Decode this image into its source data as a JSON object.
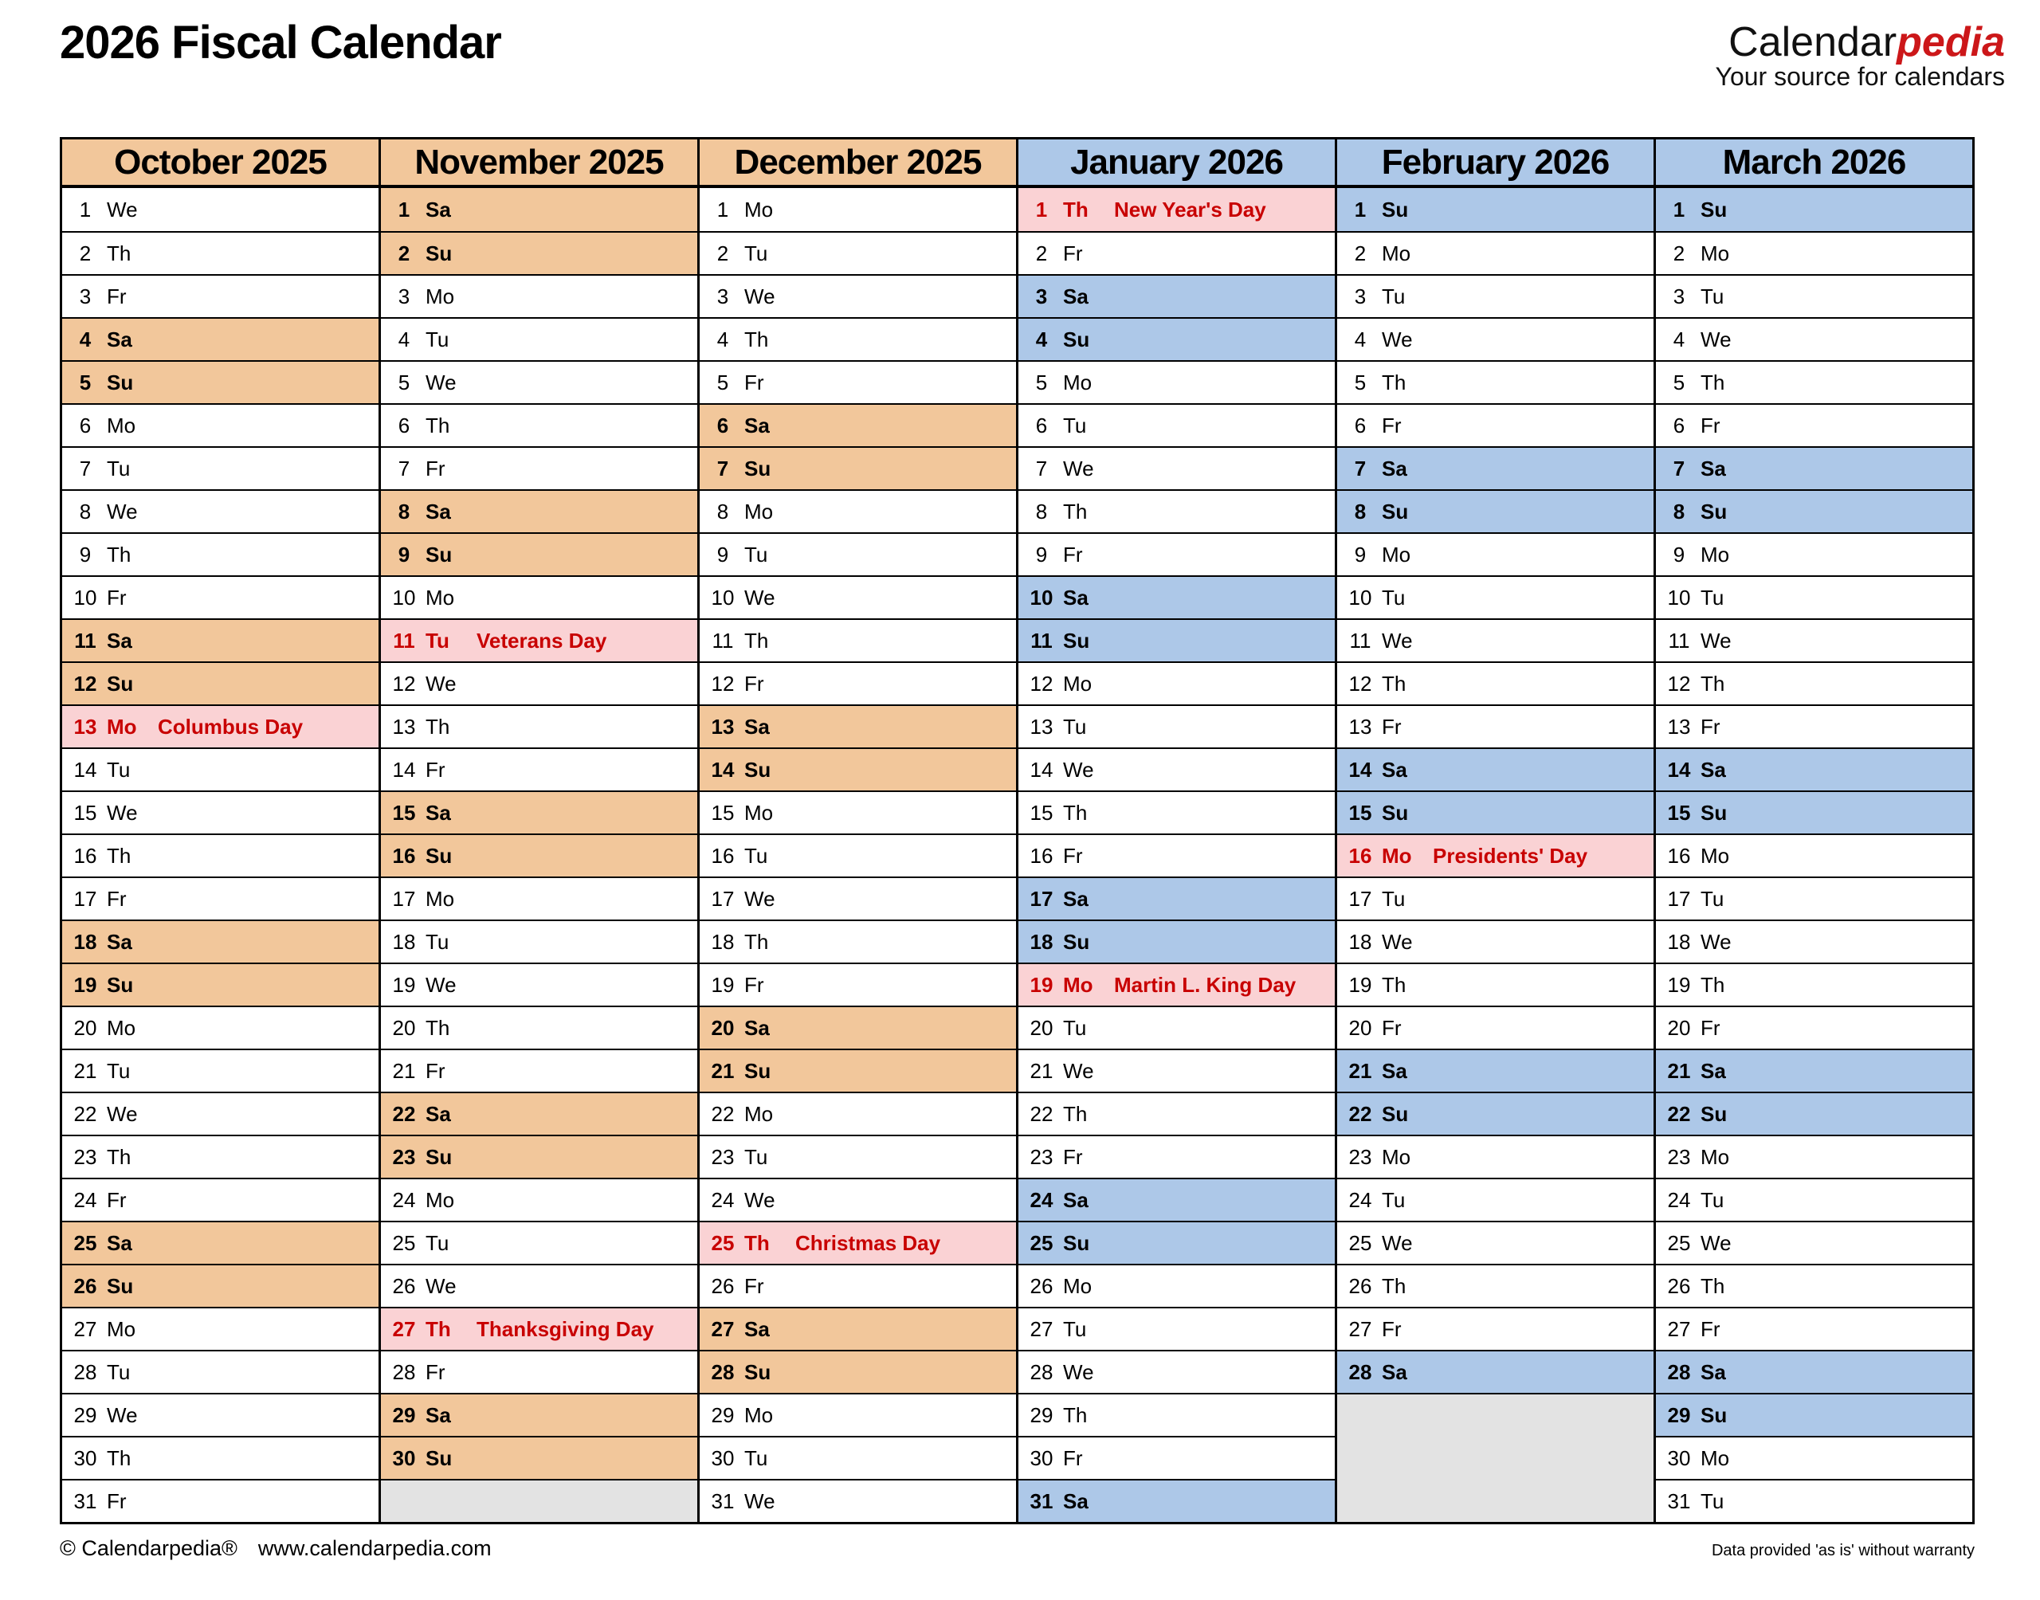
{
  "title": "2026 Fiscal Calendar",
  "logo": {
    "part1": "Calendar",
    "part2": "pedia",
    "tagline": "Your source for calendars"
  },
  "footer": {
    "copyright": "© Calendarpedia®",
    "website": "www.calendarpedia.com",
    "disclaimer": "Data provided 'as is' without warranty"
  },
  "colors": {
    "weekend_2025_orange": "#F2C79B",
    "weekend_2026_blue": "#ADC8E8",
    "holiday_bg_pink": "#FAD2D4",
    "holiday_text_red": "#C80000",
    "empty_cell_gray": "#E3E3E3",
    "logo_red": "#CC1719"
  },
  "months": [
    {
      "name": "October 2025",
      "theme": "orange",
      "days": [
        {
          "d": 1,
          "w": "We"
        },
        {
          "d": 2,
          "w": "Th"
        },
        {
          "d": 3,
          "w": "Fr"
        },
        {
          "d": 4,
          "w": "Sa"
        },
        {
          "d": 5,
          "w": "Su"
        },
        {
          "d": 6,
          "w": "Mo"
        },
        {
          "d": 7,
          "w": "Tu"
        },
        {
          "d": 8,
          "w": "We"
        },
        {
          "d": 9,
          "w": "Th"
        },
        {
          "d": 10,
          "w": "Fr"
        },
        {
          "d": 11,
          "w": "Sa"
        },
        {
          "d": 12,
          "w": "Su"
        },
        {
          "d": 13,
          "w": "Mo",
          "h": "Columbus Day"
        },
        {
          "d": 14,
          "w": "Tu"
        },
        {
          "d": 15,
          "w": "We"
        },
        {
          "d": 16,
          "w": "Th"
        },
        {
          "d": 17,
          "w": "Fr"
        },
        {
          "d": 18,
          "w": "Sa"
        },
        {
          "d": 19,
          "w": "Su"
        },
        {
          "d": 20,
          "w": "Mo"
        },
        {
          "d": 21,
          "w": "Tu"
        },
        {
          "d": 22,
          "w": "We"
        },
        {
          "d": 23,
          "w": "Th"
        },
        {
          "d": 24,
          "w": "Fr"
        },
        {
          "d": 25,
          "w": "Sa"
        },
        {
          "d": 26,
          "w": "Su"
        },
        {
          "d": 27,
          "w": "Mo"
        },
        {
          "d": 28,
          "w": "Tu"
        },
        {
          "d": 29,
          "w": "We"
        },
        {
          "d": 30,
          "w": "Th"
        },
        {
          "d": 31,
          "w": "Fr"
        }
      ]
    },
    {
      "name": "November 2025",
      "theme": "orange",
      "days": [
        {
          "d": 1,
          "w": "Sa"
        },
        {
          "d": 2,
          "w": "Su"
        },
        {
          "d": 3,
          "w": "Mo"
        },
        {
          "d": 4,
          "w": "Tu"
        },
        {
          "d": 5,
          "w": "We"
        },
        {
          "d": 6,
          "w": "Th"
        },
        {
          "d": 7,
          "w": "Fr"
        },
        {
          "d": 8,
          "w": "Sa"
        },
        {
          "d": 9,
          "w": "Su"
        },
        {
          "d": 10,
          "w": "Mo"
        },
        {
          "d": 11,
          "w": "Tu",
          "h": "Veterans Day"
        },
        {
          "d": 12,
          "w": "We"
        },
        {
          "d": 13,
          "w": "Th"
        },
        {
          "d": 14,
          "w": "Fr"
        },
        {
          "d": 15,
          "w": "Sa"
        },
        {
          "d": 16,
          "w": "Su"
        },
        {
          "d": 17,
          "w": "Mo"
        },
        {
          "d": 18,
          "w": "Tu"
        },
        {
          "d": 19,
          "w": "We"
        },
        {
          "d": 20,
          "w": "Th"
        },
        {
          "d": 21,
          "w": "Fr"
        },
        {
          "d": 22,
          "w": "Sa"
        },
        {
          "d": 23,
          "w": "Su"
        },
        {
          "d": 24,
          "w": "Mo"
        },
        {
          "d": 25,
          "w": "Tu"
        },
        {
          "d": 26,
          "w": "We"
        },
        {
          "d": 27,
          "w": "Th",
          "h": "Thanksgiving Day"
        },
        {
          "d": 28,
          "w": "Fr"
        },
        {
          "d": 29,
          "w": "Sa"
        },
        {
          "d": 30,
          "w": "Su"
        }
      ]
    },
    {
      "name": "December 2025",
      "theme": "orange",
      "days": [
        {
          "d": 1,
          "w": "Mo"
        },
        {
          "d": 2,
          "w": "Tu"
        },
        {
          "d": 3,
          "w": "We"
        },
        {
          "d": 4,
          "w": "Th"
        },
        {
          "d": 5,
          "w": "Fr"
        },
        {
          "d": 6,
          "w": "Sa"
        },
        {
          "d": 7,
          "w": "Su"
        },
        {
          "d": 8,
          "w": "Mo"
        },
        {
          "d": 9,
          "w": "Tu"
        },
        {
          "d": 10,
          "w": "We"
        },
        {
          "d": 11,
          "w": "Th"
        },
        {
          "d": 12,
          "w": "Fr"
        },
        {
          "d": 13,
          "w": "Sa"
        },
        {
          "d": 14,
          "w": "Su"
        },
        {
          "d": 15,
          "w": "Mo"
        },
        {
          "d": 16,
          "w": "Tu"
        },
        {
          "d": 17,
          "w": "We"
        },
        {
          "d": 18,
          "w": "Th"
        },
        {
          "d": 19,
          "w": "Fr"
        },
        {
          "d": 20,
          "w": "Sa"
        },
        {
          "d": 21,
          "w": "Su"
        },
        {
          "d": 22,
          "w": "Mo"
        },
        {
          "d": 23,
          "w": "Tu"
        },
        {
          "d": 24,
          "w": "We"
        },
        {
          "d": 25,
          "w": "Th",
          "h": "Christmas Day"
        },
        {
          "d": 26,
          "w": "Fr"
        },
        {
          "d": 27,
          "w": "Sa"
        },
        {
          "d": 28,
          "w": "Su"
        },
        {
          "d": 29,
          "w": "Mo"
        },
        {
          "d": 30,
          "w": "Tu"
        },
        {
          "d": 31,
          "w": "We"
        }
      ]
    },
    {
      "name": "January 2026",
      "theme": "blue",
      "days": [
        {
          "d": 1,
          "w": "Th",
          "h": "New Year's Day"
        },
        {
          "d": 2,
          "w": "Fr"
        },
        {
          "d": 3,
          "w": "Sa"
        },
        {
          "d": 4,
          "w": "Su"
        },
        {
          "d": 5,
          "w": "Mo"
        },
        {
          "d": 6,
          "w": "Tu"
        },
        {
          "d": 7,
          "w": "We"
        },
        {
          "d": 8,
          "w": "Th"
        },
        {
          "d": 9,
          "w": "Fr"
        },
        {
          "d": 10,
          "w": "Sa"
        },
        {
          "d": 11,
          "w": "Su"
        },
        {
          "d": 12,
          "w": "Mo"
        },
        {
          "d": 13,
          "w": "Tu"
        },
        {
          "d": 14,
          "w": "We"
        },
        {
          "d": 15,
          "w": "Th"
        },
        {
          "d": 16,
          "w": "Fr"
        },
        {
          "d": 17,
          "w": "Sa"
        },
        {
          "d": 18,
          "w": "Su"
        },
        {
          "d": 19,
          "w": "Mo",
          "h": "Martin L. King Day"
        },
        {
          "d": 20,
          "w": "Tu"
        },
        {
          "d": 21,
          "w": "We"
        },
        {
          "d": 22,
          "w": "Th"
        },
        {
          "d": 23,
          "w": "Fr"
        },
        {
          "d": 24,
          "w": "Sa"
        },
        {
          "d": 25,
          "w": "Su"
        },
        {
          "d": 26,
          "w": "Mo"
        },
        {
          "d": 27,
          "w": "Tu"
        },
        {
          "d": 28,
          "w": "We"
        },
        {
          "d": 29,
          "w": "Th"
        },
        {
          "d": 30,
          "w": "Fr"
        },
        {
          "d": 31,
          "w": "Sa"
        }
      ]
    },
    {
      "name": "February 2026",
      "theme": "blue",
      "days": [
        {
          "d": 1,
          "w": "Su"
        },
        {
          "d": 2,
          "w": "Mo"
        },
        {
          "d": 3,
          "w": "Tu"
        },
        {
          "d": 4,
          "w": "We"
        },
        {
          "d": 5,
          "w": "Th"
        },
        {
          "d": 6,
          "w": "Fr"
        },
        {
          "d": 7,
          "w": "Sa"
        },
        {
          "d": 8,
          "w": "Su"
        },
        {
          "d": 9,
          "w": "Mo"
        },
        {
          "d": 10,
          "w": "Tu"
        },
        {
          "d": 11,
          "w": "We"
        },
        {
          "d": 12,
          "w": "Th"
        },
        {
          "d": 13,
          "w": "Fr"
        },
        {
          "d": 14,
          "w": "Sa"
        },
        {
          "d": 15,
          "w": "Su"
        },
        {
          "d": 16,
          "w": "Mo",
          "h": "Presidents' Day"
        },
        {
          "d": 17,
          "w": "Tu"
        },
        {
          "d": 18,
          "w": "We"
        },
        {
          "d": 19,
          "w": "Th"
        },
        {
          "d": 20,
          "w": "Fr"
        },
        {
          "d": 21,
          "w": "Sa"
        },
        {
          "d": 22,
          "w": "Su"
        },
        {
          "d": 23,
          "w": "Mo"
        },
        {
          "d": 24,
          "w": "Tu"
        },
        {
          "d": 25,
          "w": "We"
        },
        {
          "d": 26,
          "w": "Th"
        },
        {
          "d": 27,
          "w": "Fr"
        },
        {
          "d": 28,
          "w": "Sa"
        }
      ]
    },
    {
      "name": "March 2026",
      "theme": "blue",
      "days": [
        {
          "d": 1,
          "w": "Su"
        },
        {
          "d": 2,
          "w": "Mo"
        },
        {
          "d": 3,
          "w": "Tu"
        },
        {
          "d": 4,
          "w": "We"
        },
        {
          "d": 5,
          "w": "Th"
        },
        {
          "d": 6,
          "w": "Fr"
        },
        {
          "d": 7,
          "w": "Sa"
        },
        {
          "d": 8,
          "w": "Su"
        },
        {
          "d": 9,
          "w": "Mo"
        },
        {
          "d": 10,
          "w": "Tu"
        },
        {
          "d": 11,
          "w": "We"
        },
        {
          "d": 12,
          "w": "Th"
        },
        {
          "d": 13,
          "w": "Fr"
        },
        {
          "d": 14,
          "w": "Sa"
        },
        {
          "d": 15,
          "w": "Su"
        },
        {
          "d": 16,
          "w": "Mo"
        },
        {
          "d": 17,
          "w": "Tu"
        },
        {
          "d": 18,
          "w": "We"
        },
        {
          "d": 19,
          "w": "Th"
        },
        {
          "d": 20,
          "w": "Fr"
        },
        {
          "d": 21,
          "w": "Sa"
        },
        {
          "d": 22,
          "w": "Su"
        },
        {
          "d": 23,
          "w": "Mo"
        },
        {
          "d": 24,
          "w": "Tu"
        },
        {
          "d": 25,
          "w": "We"
        },
        {
          "d": 26,
          "w": "Th"
        },
        {
          "d": 27,
          "w": "Fr"
        },
        {
          "d": 28,
          "w": "Sa"
        },
        {
          "d": 29,
          "w": "Su"
        },
        {
          "d": 30,
          "w": "Mo"
        },
        {
          "d": 31,
          "w": "Tu"
        }
      ]
    }
  ]
}
